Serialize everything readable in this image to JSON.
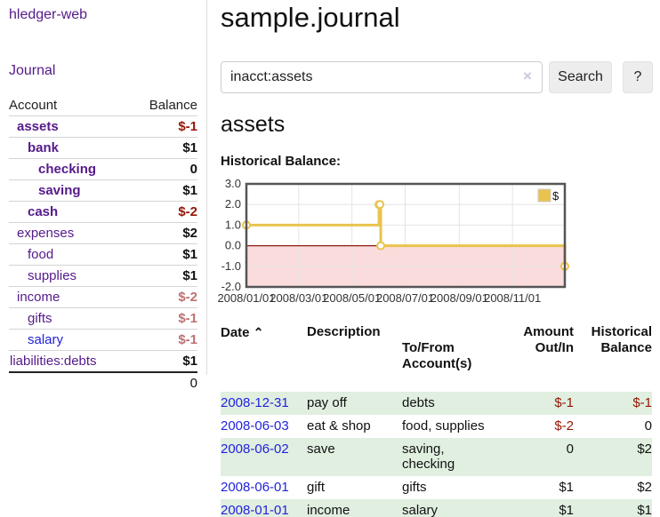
{
  "app": {
    "title": "hledger-web"
  },
  "sidebar": {
    "journal_link": "Journal",
    "table": {
      "col_account": "Account",
      "col_balance": "Balance",
      "accounts": [
        {
          "name": "assets",
          "indent": 1,
          "bold": true,
          "link_color": "purple",
          "balance": "$-1",
          "balance_class": "neg-strong"
        },
        {
          "name": "bank",
          "indent": 2,
          "bold": true,
          "link_color": "purple",
          "balance": "$1",
          "balance_class": ""
        },
        {
          "name": "checking",
          "indent": 3,
          "bold": true,
          "link_color": "purple",
          "balance": "0",
          "balance_class": ""
        },
        {
          "name": "saving",
          "indent": 3,
          "bold": true,
          "link_color": "purple",
          "balance": "$1",
          "balance_class": ""
        },
        {
          "name": "cash",
          "indent": 2,
          "bold": true,
          "link_color": "purple",
          "balance": "$-2",
          "balance_class": "neg-strong"
        },
        {
          "name": "expenses",
          "indent": 1,
          "bold": false,
          "link_color": "purple",
          "balance": "$2",
          "balance_class": ""
        },
        {
          "name": "food",
          "indent": 2,
          "bold": false,
          "link_color": "purple",
          "balance": "$1",
          "balance_class": ""
        },
        {
          "name": "supplies",
          "indent": 2,
          "bold": false,
          "link_color": "purple",
          "balance": "$1",
          "balance_class": ""
        },
        {
          "name": "income",
          "indent": 1,
          "bold": false,
          "link_color": "purple",
          "balance": "$-2",
          "balance_class": "neg-soft"
        },
        {
          "name": "gifts",
          "indent": 2,
          "bold": false,
          "link_color": "purple",
          "balance": "$-1",
          "balance_class": "neg-soft"
        },
        {
          "name": "salary",
          "indent": 2,
          "bold": false,
          "link_color": "blue",
          "balance": "$-1",
          "balance_class": "neg-soft"
        },
        {
          "name": "liabilities:debts",
          "indent": 0,
          "bold": false,
          "link_color": "purple",
          "balance": "$1",
          "balance_class": ""
        }
      ],
      "total": "0"
    }
  },
  "main": {
    "title": "sample.journal",
    "search": {
      "value": "inacct:assets",
      "clear_icon": "×",
      "button": "Search",
      "help_button": "?"
    },
    "account_heading": "assets",
    "chart_label": "Historical Balance:"
  },
  "register": {
    "sort_icon": "⌃",
    "headers": [
      [
        "Date",
        ""
      ],
      [
        "Description",
        ""
      ],
      [
        "To/From",
        "Account(s)"
      ],
      [
        "Amount",
        "Out/In"
      ],
      [
        "Historical",
        "Balance"
      ]
    ],
    "rows": [
      {
        "date": "2008-12-31",
        "description": "pay off",
        "accounts": "debts",
        "amount": "$-1",
        "balance": "$-1",
        "amount_neg": true,
        "balance_neg": true,
        "shaded": true
      },
      {
        "date": "2008-06-03",
        "description": "eat & shop",
        "accounts": "food, supplies",
        "amount": "$-2",
        "balance": "0",
        "amount_neg": true,
        "balance_neg": false,
        "shaded": false
      },
      {
        "date": "2008-06-02",
        "description": "save",
        "accounts": "saving,\nchecking",
        "amount": "0",
        "balance": "$2",
        "amount_neg": false,
        "balance_neg": false,
        "shaded": true
      },
      {
        "date": "2008-06-01",
        "description": "gift",
        "accounts": "gifts",
        "amount": "$1",
        "balance": "$2",
        "amount_neg": false,
        "balance_neg": false,
        "shaded": false
      },
      {
        "date": "2008-01-01",
        "description": "income",
        "accounts": "salary",
        "amount": "$1",
        "balance": "$1",
        "amount_neg": false,
        "balance_neg": false,
        "shaded": true
      }
    ]
  },
  "chart_data": {
    "type": "line",
    "step": true,
    "title": "Historical Balance:",
    "legend": "$",
    "legend_position": "top-right",
    "xlim": [
      "2008-01-01",
      "2008-12-31"
    ],
    "ylim": [
      -2,
      3
    ],
    "y_ticks": [
      "3.0",
      "2.0",
      "1.0",
      "0.0",
      "-1.0",
      "-2.0"
    ],
    "x_ticks": [
      "2008/01/01",
      "2008/03/01",
      "2008/05/01",
      "2008/07/01",
      "2008/09/01",
      "2008/11/01"
    ],
    "series": [
      {
        "name": "$",
        "points": [
          [
            "2008-01-01",
            1
          ],
          [
            "2008-06-01",
            2
          ],
          [
            "2008-06-02",
            2
          ],
          [
            "2008-06-03",
            0
          ],
          [
            "2008-12-31",
            -1
          ]
        ]
      }
    ],
    "colors": {
      "line": "#e9c34e",
      "marker_fill": "#ffffff",
      "negative_region": "#fbdcdc",
      "zero_line": "#8c1a12",
      "grid": "#e4e4e4",
      "border": "#555555"
    }
  }
}
